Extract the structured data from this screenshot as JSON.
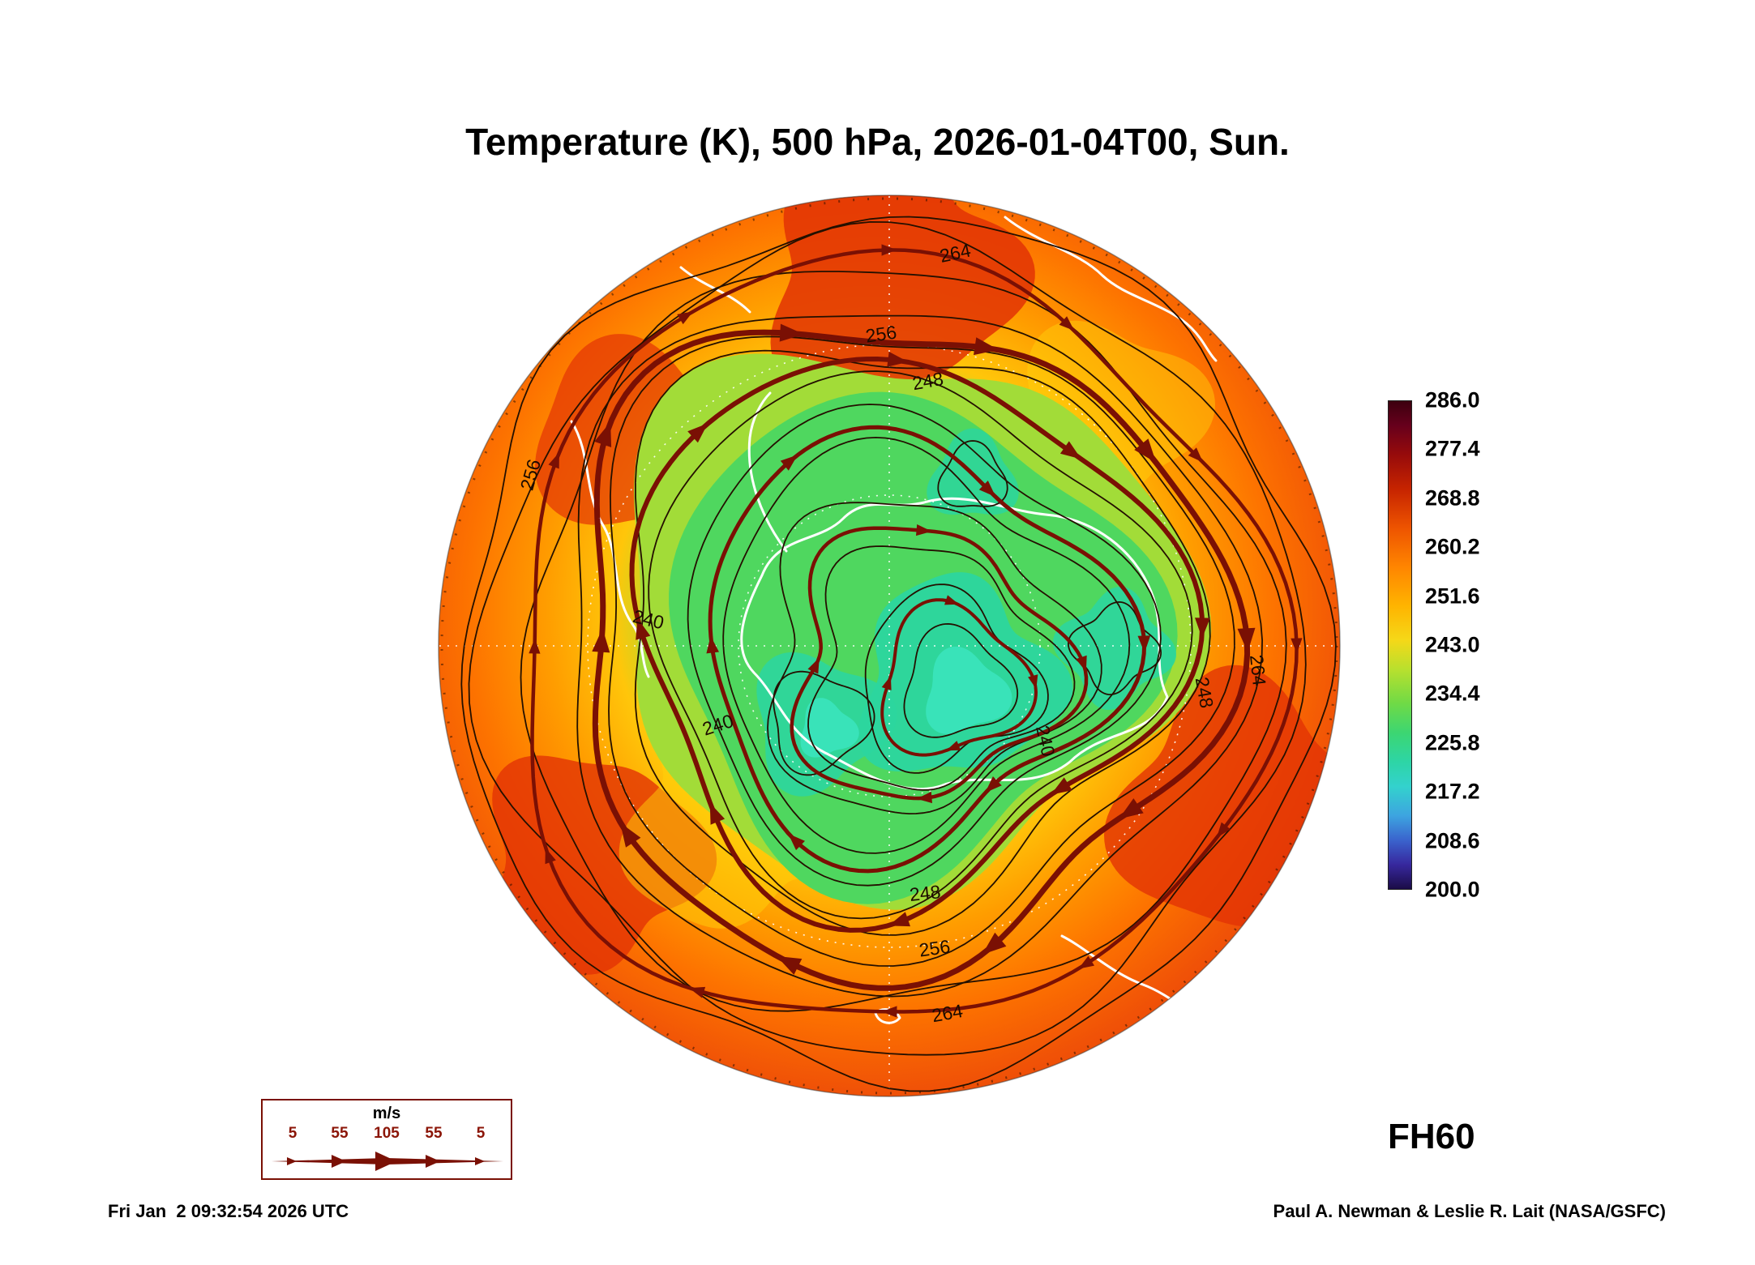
{
  "title": "Temperature (K), 500 hPa, 2026-01-04T00, Sun.",
  "forecast_hour": "FH60",
  "footer": {
    "timestamp": "Fri Jan  2 09:32:54 2026 UTC",
    "credit": "Paul A. Newman & Leslie R. Lait (NASA/GSFC)"
  },
  "wind_legend": {
    "units_label": "m/s",
    "tick_labels": [
      "5",
      "55",
      "105",
      "55",
      "5"
    ]
  },
  "chart_data": {
    "type": "heatmap",
    "title": "Temperature (K), 500 hPa, 2026-01-04T00, Sun.",
    "variable": "Temperature",
    "units": "K",
    "pressure_level_hPa": 500,
    "valid_time": "2026-01-04T00",
    "valid_weekday": "Sun.",
    "forecast_hour": 60,
    "projection": "polar stereographic (Southern Hemisphere, Antarctica centered)",
    "overlays": [
      "temperature filled contours",
      "temperature contour lines",
      "wind streamlines with arrowheads",
      "coastlines",
      "dashed lat/lon graticule"
    ],
    "colorbar": {
      "min": 200.0,
      "max": 286.0,
      "tick_labels": [
        "286.0",
        "277.4",
        "268.8",
        "260.2",
        "251.6",
        "243.0",
        "234.4",
        "225.8",
        "217.2",
        "208.6",
        "200.0"
      ],
      "gradient": [
        {
          "stop": 0.0,
          "color": "#3c000f"
        },
        {
          "stop": 0.05,
          "color": "#67001c"
        },
        {
          "stop": 0.11,
          "color": "#970b0b"
        },
        {
          "stop": 0.18,
          "color": "#c62400"
        },
        {
          "stop": 0.26,
          "color": "#ee5400"
        },
        {
          "stop": 0.34,
          "color": "#ff8500"
        },
        {
          "stop": 0.42,
          "color": "#ffb400"
        },
        {
          "stop": 0.49,
          "color": "#f5d818"
        },
        {
          "stop": 0.55,
          "color": "#b8e02e"
        },
        {
          "stop": 0.62,
          "color": "#6fda46"
        },
        {
          "stop": 0.68,
          "color": "#3cd672"
        },
        {
          "stop": 0.74,
          "color": "#2dd5a6"
        },
        {
          "stop": 0.79,
          "color": "#33d2cd"
        },
        {
          "stop": 0.85,
          "color": "#3da4e0"
        },
        {
          "stop": 0.9,
          "color": "#3a63cd"
        },
        {
          "stop": 0.95,
          "color": "#37289e"
        },
        {
          "stop": 1.0,
          "color": "#1b0c47"
        }
      ]
    },
    "contour_labels_K": [
      240,
      248,
      256,
      264
    ],
    "contour_label_values": [
      "264",
      "256",
      "248",
      "256",
      "240",
      "240",
      "240",
      "248",
      "264",
      "248",
      "256",
      "264"
    ],
    "wind_legend_units": "m/s",
    "wind_speed_ticks_ms": [
      5,
      55,
      105,
      55,
      5
    ],
    "palette": {
      "rim_red": "#e23305",
      "yellow": "#ffd20a",
      "yellow_green": "#a2dc38",
      "green": "#4fd75f",
      "teal": "#2cd69e",
      "mint": "#3be4bd",
      "contour_line": "#241000",
      "streamline": "#7a1004",
      "coastline": "#ffffff"
    }
  }
}
